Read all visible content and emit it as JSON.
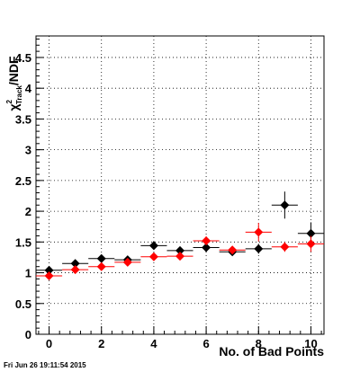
{
  "chart_data": {
    "type": "scatter",
    "xlabel": "No. of Bad Points",
    "ylabel_parts": {
      "chi": "χ",
      "sup": "2",
      "sub": "Track",
      "tail": "/NDF"
    },
    "xlim": [
      -0.5,
      10.5
    ],
    "ylim": [
      0,
      4.85
    ],
    "x_ticks": [
      0,
      2,
      4,
      6,
      8,
      10
    ],
    "x_tick_labels": [
      "0",
      "2",
      "4",
      "6",
      "8",
      "10"
    ],
    "y_ticks": [
      0,
      0.5,
      1,
      1.5,
      2,
      2.5,
      3,
      3.5,
      4,
      4.5
    ],
    "y_tick_labels": [
      "0",
      "0.5",
      "1",
      "1.5",
      "2",
      "2.5",
      "3",
      "3.5",
      "4",
      "4.5"
    ],
    "grid": true,
    "series": [
      {
        "color": "#000000",
        "points": [
          {
            "x": 0,
            "y": 1.04,
            "xerr": 0.5,
            "yerr": 0.03
          },
          {
            "x": 1,
            "y": 1.15,
            "xerr": 0.5,
            "yerr": 0.03
          },
          {
            "x": 2,
            "y": 1.23,
            "xerr": 0.5,
            "yerr": 0.03
          },
          {
            "x": 3,
            "y": 1.21,
            "xerr": 0.5,
            "yerr": 0.04
          },
          {
            "x": 4,
            "y": 1.44,
            "xerr": 0.5,
            "yerr": 0.06
          },
          {
            "x": 5,
            "y": 1.36,
            "xerr": 0.5,
            "yerr": 0.06
          },
          {
            "x": 6,
            "y": 1.41,
            "xerr": 0.5,
            "yerr": 0.08
          },
          {
            "x": 7,
            "y": 1.34,
            "xerr": 0.5,
            "yerr": 0.06
          },
          {
            "x": 8,
            "y": 1.39,
            "xerr": 0.5,
            "yerr": 0.08
          },
          {
            "x": 9,
            "y": 2.1,
            "xerr": 0.5,
            "yerr": 0.22
          },
          {
            "x": 10,
            "y": 1.64,
            "xerr": 0.5,
            "yerr": 0.18
          }
        ]
      },
      {
        "color": "#ff0000",
        "points": [
          {
            "x": 0,
            "y": 0.95,
            "xerr": 0.5,
            "yerr": 0.03
          },
          {
            "x": 1,
            "y": 1.05,
            "xerr": 0.5,
            "yerr": 0.03
          },
          {
            "x": 2,
            "y": 1.1,
            "xerr": 0.5,
            "yerr": 0.03
          },
          {
            "x": 3,
            "y": 1.17,
            "xerr": 0.5,
            "yerr": 0.04
          },
          {
            "x": 4,
            "y": 1.26,
            "xerr": 0.5,
            "yerr": 0.05
          },
          {
            "x": 5,
            "y": 1.27,
            "xerr": 0.5,
            "yerr": 0.05
          },
          {
            "x": 6,
            "y": 1.52,
            "xerr": 0.5,
            "yerr": 0.07
          },
          {
            "x": 7,
            "y": 1.37,
            "xerr": 0.5,
            "yerr": 0.06
          },
          {
            "x": 8,
            "y": 1.66,
            "xerr": 0.5,
            "yerr": 0.15
          },
          {
            "x": 9,
            "y": 1.42,
            "xerr": 0.5,
            "yerr": 0.08
          },
          {
            "x": 10,
            "y": 1.47,
            "xerr": 0.5,
            "yerr": 0.13
          }
        ]
      }
    ]
  },
  "footer_timestamp": "Fri Jun 26 19:11:54 2015"
}
